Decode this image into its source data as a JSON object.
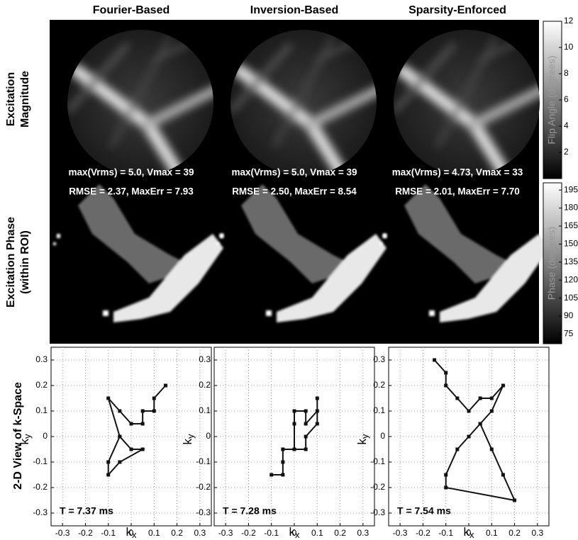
{
  "column_titles": [
    "Fourier-Based",
    "Inversion-Based",
    "Sparsity-Enforced"
  ],
  "row_labels": [
    [
      "Excitation",
      "Magnitude"
    ],
    [
      "Excitation Phase",
      "(within ROI)"
    ],
    [
      "2-D View of k-Space"
    ]
  ],
  "stats": [
    [
      "max(Vrms) = 5.0, Vmax = 39",
      "RMSE = 2.37, MaxErr = 7.93"
    ],
    [
      "max(Vrms) = 5.0, Vmax = 39",
      "RMSE = 2.50, MaxErr = 8.54"
    ],
    [
      "max(Vrms) = 4.73, Vmax = 33",
      "RMSE = 2.01, MaxErr = 7.70"
    ]
  ],
  "colorbars": [
    {
      "label": "Flip Angle (degrees)",
      "lim": [
        0,
        12
      ],
      "ticks": [
        2,
        4,
        6,
        8,
        10,
        12
      ]
    },
    {
      "label": "Phase (degrees)",
      "lim": [
        67,
        201
      ],
      "ticks": [
        75,
        90,
        105,
        120,
        135,
        150,
        165,
        180,
        195
      ]
    }
  ],
  "chart_data": [
    {
      "type": "line",
      "annotation": "T = 7.37 ms",
      "xlabel": {
        "base": "k",
        "sub": "x"
      },
      "ylabel": {
        "base": "k",
        "sub": "y"
      },
      "x": [
        0.15,
        0.1,
        0.1,
        0.05,
        0.05,
        0,
        -0.05,
        -0.1,
        -0.05,
        0,
        0.05,
        -0.05,
        -0.1,
        -0.1,
        -0.05
      ],
      "series": [
        {
          "color": "#111111",
          "values": [
            0.2,
            0.15,
            0.1,
            0.1,
            0.05,
            0.05,
            0.1,
            0.15,
            0,
            -0.05,
            -0.05,
            -0.1,
            -0.15,
            -0.1,
            0
          ]
        }
      ],
      "xlim": [
        -0.35,
        0.35
      ],
      "ylim": [
        -0.35,
        0.35
      ],
      "xticks": [
        -0.3,
        -0.2,
        -0.1,
        0,
        0.1,
        0.2,
        0.3
      ],
      "yticks": [
        -0.3,
        -0.2,
        -0.1,
        0,
        0.1,
        0.2,
        0.3
      ],
      "grid": true
    },
    {
      "type": "line",
      "annotation": "T = 7.28 ms",
      "xlabel": {
        "base": "k",
        "sub": "x"
      },
      "ylabel": {
        "base": "k",
        "sub": "y"
      },
      "x": [
        -0.1,
        -0.05,
        -0.05,
        -0.05,
        0,
        0,
        0,
        0.05,
        0.05,
        0.1,
        0.1,
        0.1,
        0.05,
        0.05,
        0
      ],
      "series": [
        {
          "color": "#111111",
          "values": [
            -0.15,
            -0.15,
            -0.1,
            -0.05,
            -0.05,
            0.05,
            0.1,
            0.1,
            0.05,
            0.1,
            0.15,
            0.05,
            0,
            -0.05,
            -0.05
          ]
        }
      ],
      "xlim": [
        -0.35,
        0.35
      ],
      "ylim": [
        -0.35,
        0.35
      ],
      "xticks": [
        -0.3,
        -0.2,
        -0.1,
        0,
        0.1,
        0.2,
        0.3
      ],
      "yticks": [
        -0.3,
        -0.2,
        -0.1,
        0,
        0.1,
        0.2,
        0.3
      ],
      "grid": true
    },
    {
      "type": "line",
      "annotation": "T = 7.54 ms",
      "xlabel": {
        "base": "k",
        "sub": "x"
      },
      "ylabel": {
        "base": "k",
        "sub": "y"
      },
      "x": [
        -0.15,
        -0.1,
        -0.1,
        -0.05,
        0,
        0.05,
        0.1,
        0.15,
        0.1,
        0.05,
        0.1,
        0.15,
        0.2,
        -0.1,
        -0.1,
        -0.05,
        0,
        0.05
      ],
      "series": [
        {
          "color": "#111111",
          "values": [
            0.3,
            0.25,
            0.2,
            0.15,
            0.1,
            0.15,
            0.15,
            0.2,
            0.1,
            0.05,
            -0.05,
            -0.15,
            -0.25,
            -0.2,
            -0.15,
            -0.05,
            0,
            0.05
          ]
        }
      ],
      "xlim": [
        -0.35,
        0.35
      ],
      "ylim": [
        -0.35,
        0.35
      ],
      "xticks": [
        -0.3,
        -0.2,
        -0.1,
        0,
        0.1,
        0.2,
        0.3
      ],
      "yticks": [
        -0.3,
        -0.2,
        -0.1,
        0,
        0.1,
        0.2,
        0.3
      ],
      "grid": true
    }
  ]
}
